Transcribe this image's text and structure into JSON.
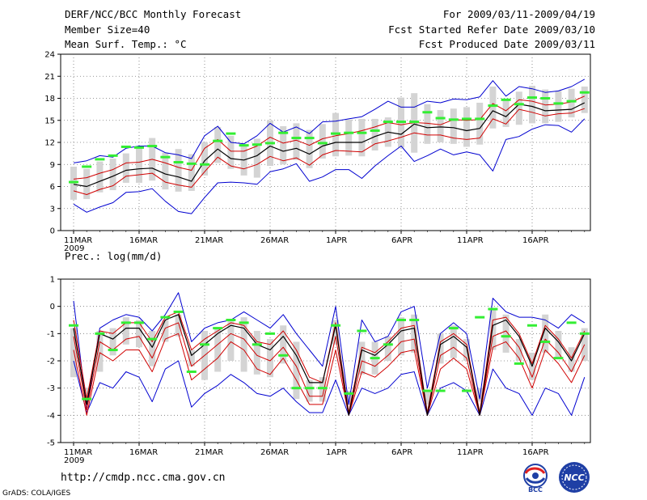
{
  "header": {
    "title": "DERF/NCC/BCC Monthly Forecast",
    "member_size": "Member Size=40",
    "variable": "Mean Surf. Temp.: °C",
    "period": "For 2009/03/11-2009/04/19",
    "started": "Fcst Started Refer Date 2009/03/10",
    "produced": "Fcst Produced Date 2009/03/11"
  },
  "footer": {
    "url": "http://cmdp.ncc.cma.gov.cn",
    "grads": "GrADS: COLA/IGES",
    "logo_bcc": "BCC",
    "logo_ncc": "NCC"
  },
  "colors": {
    "box": "#d4d4d4",
    "mean": "#000000",
    "spread": "#d00000",
    "extreme": "#0000d0",
    "marker": "#33ee33",
    "grid": "#777777"
  },
  "chart_data": [
    {
      "type": "line",
      "title": "Mean Surf. Temp.: °C",
      "x_tick_labels": [
        "11MAR\n2009",
        "16MAR",
        "21MAR",
        "26MAR",
        "1APR",
        "6APR",
        "11APR",
        "16APR"
      ],
      "x_tick_day_index": [
        0,
        5,
        10,
        15,
        20,
        25,
        30,
        35
      ],
      "ylim": [
        0,
        24
      ],
      "yticks": [
        0,
        3,
        6,
        9,
        12,
        15,
        18,
        21,
        24
      ],
      "grid": true,
      "series": [
        {
          "name": "max",
          "values": [
            9.2,
            9.5,
            10.2,
            10.0,
            11.2,
            11.5,
            11.5,
            10.6,
            10.3,
            9.8,
            12.9,
            14.2,
            12.0,
            11.8,
            12.9,
            14.6,
            13.4,
            14.1,
            13.2,
            14.8,
            14.9,
            15.2,
            15.5,
            16.5,
            17.6,
            16.8,
            16.8,
            17.6,
            17.4,
            17.9,
            17.8,
            18.2,
            20.4,
            18.3,
            19.6,
            19.3,
            18.8,
            19.0,
            19.6,
            20.6
          ]
        },
        {
          "name": "p90",
          "values": [
            7.0,
            7.2,
            7.8,
            8.3,
            9.2,
            9.3,
            9.7,
            9.2,
            8.6,
            8.2,
            11.2,
            12.4,
            10.8,
            10.8,
            11.5,
            12.7,
            11.9,
            12.3,
            11.6,
            12.5,
            12.9,
            13.2,
            13.6,
            14.1,
            14.7,
            14.4,
            14.7,
            14.6,
            14.4,
            15.1,
            15.0,
            15.1,
            17.3,
            16.3,
            17.8,
            17.6,
            17.1,
            17.2,
            17.5,
            18.3
          ]
        },
        {
          "name": "mean",
          "values": [
            6.3,
            6.0,
            6.7,
            7.4,
            8.2,
            8.4,
            8.5,
            7.7,
            7.3,
            6.7,
            9.5,
            11.1,
            9.8,
            9.6,
            10.2,
            11.5,
            10.8,
            11.2,
            10.4,
            11.5,
            12.0,
            12.0,
            12.0,
            12.8,
            13.4,
            13.1,
            14.5,
            14.0,
            14.1,
            14.0,
            13.6,
            13.9,
            16.3,
            15.5,
            17.2,
            16.9,
            16.3,
            16.4,
            16.5,
            17.4
          ]
        },
        {
          "name": "p10",
          "values": [
            5.4,
            4.9,
            5.6,
            6.1,
            7.4,
            7.6,
            7.8,
            6.6,
            6.2,
            5.9,
            8.0,
            10.0,
            8.8,
            8.4,
            9.0,
            10.1,
            9.5,
            9.9,
            8.9,
            10.3,
            10.9,
            10.8,
            10.7,
            11.8,
            12.2,
            12.7,
            13.3,
            13.0,
            13.0,
            12.6,
            12.4,
            12.6,
            15.2,
            14.5,
            16.5,
            16.1,
            15.6,
            15.9,
            16.0,
            16.6
          ]
        },
        {
          "name": "min",
          "values": [
            3.6,
            2.5,
            3.2,
            3.8,
            5.2,
            5.3,
            5.7,
            4.0,
            2.6,
            2.3,
            4.5,
            6.5,
            6.6,
            6.5,
            6.3,
            8.0,
            8.4,
            9.1,
            6.7,
            7.3,
            8.3,
            8.3,
            7.1,
            8.8,
            10.2,
            11.5,
            9.4,
            10.2,
            11.1,
            10.3,
            10.7,
            10.3,
            8.1,
            12.4,
            12.8,
            13.8,
            14.4,
            14.3,
            13.4,
            15.2
          ]
        },
        {
          "name": "marker",
          "values": [
            6.6,
            8.7,
            9.7,
            10.2,
            11.4,
            11.3,
            11.5,
            10.0,
            9.3,
            9.1,
            9.0,
            12.2,
            13.2,
            11.6,
            11.7,
            11.9,
            13.3,
            12.6,
            12.6,
            11.9,
            13.2,
            13.3,
            13.3,
            13.6,
            14.8,
            14.8,
            14.8,
            16.1,
            15.3,
            15.1,
            15.2,
            15.2,
            17.0,
            17.8,
            17.2,
            18.1,
            18.0,
            17.3,
            17.6,
            18.8
          ]
        },
        {
          "name": "box_low",
          "values": [
            4.2,
            4.3,
            5.2,
            5.5,
            6.5,
            6.5,
            6.8,
            5.6,
            5.3,
            5.4,
            7.5,
            9.2,
            8.4,
            7.5,
            7.2,
            8.8,
            9.0,
            9.6,
            8.5,
            9.8,
            10.1,
            10.2,
            10.1,
            10.9,
            11.4,
            11.3,
            10.6,
            11.8,
            12.0,
            11.8,
            11.4,
            11.7,
            13.9,
            14.1,
            14.4,
            14.6,
            14.6,
            14.8,
            15.4,
            16.0
          ]
        },
        {
          "name": "box_high",
          "values": [
            8.7,
            8.4,
            9.4,
            9.8,
            10.5,
            11.4,
            12.6,
            10.6,
            11.1,
            10.4,
            12.0,
            14.1,
            12.9,
            11.7,
            12.5,
            15.0,
            14.2,
            14.6,
            13.7,
            14.5,
            16.0,
            15.1,
            15.2,
            15.2,
            15.4,
            18.1,
            18.7,
            17.2,
            16.4,
            16.6,
            16.8,
            17.4,
            19.6,
            17.8,
            18.9,
            19.7,
            19.2,
            19.0,
            19.3,
            19.6
          ]
        }
      ]
    },
    {
      "type": "line",
      "title": "Prec.: log(mm/d)",
      "x_tick_labels": [
        "11MAR\n2009",
        "16MAR",
        "21MAR",
        "26MAR",
        "1APR",
        "6APR",
        "11APR",
        "16APR"
      ],
      "x_tick_day_index": [
        0,
        5,
        10,
        15,
        20,
        25,
        30,
        35
      ],
      "ylim": [
        -5,
        1
      ],
      "yticks": [
        -5,
        -4,
        -3,
        -2,
        -1,
        0,
        1
      ],
      "grid": true,
      "series": [
        {
          "name": "max",
          "values": [
            0.2,
            -3.8,
            -0.8,
            -0.5,
            -0.3,
            -0.4,
            -0.9,
            -0.3,
            0.5,
            -1.3,
            -0.8,
            -0.6,
            -0.5,
            -0.2,
            -0.5,
            -0.8,
            -0.3,
            -1.0,
            -1.6,
            -2.2,
            0.0,
            -3.6,
            -0.5,
            -1.3,
            -1.1,
            -0.2,
            0.0,
            -3.0,
            -1.0,
            -0.6,
            -1.0,
            -3.4,
            0.3,
            -0.2,
            -0.4,
            -0.4,
            -0.5,
            -0.8,
            -0.3,
            -0.6
          ]
        },
        {
          "name": "p90",
          "values": [
            -0.5,
            -3.4,
            -0.9,
            -1.0,
            -0.6,
            -0.6,
            -1.3,
            -0.4,
            -0.2,
            -1.6,
            -1.2,
            -0.9,
            -0.6,
            -0.7,
            -1.3,
            -1.4,
            -0.9,
            -1.6,
            -2.6,
            -2.8,
            -0.6,
            -3.9,
            -1.5,
            -1.7,
            -1.3,
            -0.8,
            -0.7,
            -3.9,
            -1.3,
            -1.0,
            -1.4,
            -3.9,
            -0.5,
            -0.4,
            -1.0,
            -2.1,
            -0.7,
            -1.2,
            -1.9,
            -0.9
          ]
        },
        {
          "name": "mean",
          "values": [
            -0.8,
            -3.6,
            -1.0,
            -1.2,
            -0.8,
            -0.8,
            -1.5,
            -0.5,
            -0.3,
            -1.8,
            -1.4,
            -1.0,
            -0.7,
            -0.8,
            -1.4,
            -1.6,
            -1.1,
            -1.8,
            -2.8,
            -2.8,
            -0.7,
            -4.0,
            -1.6,
            -1.8,
            -1.4,
            -0.9,
            -0.8,
            -4.0,
            -1.4,
            -1.1,
            -1.5,
            -4.0,
            -0.7,
            -0.5,
            -1.1,
            -2.2,
            -0.8,
            -1.3,
            -2.0,
            -1.0
          ]
        },
        {
          "name": "p10",
          "values": [
            -1.1,
            -3.8,
            -1.3,
            -1.6,
            -1.2,
            -1.1,
            -1.9,
            -0.8,
            -0.6,
            -2.2,
            -1.8,
            -1.4,
            -1.0,
            -1.2,
            -1.8,
            -2.0,
            -1.5,
            -2.2,
            -3.3,
            -3.3,
            -1.1,
            -4.0,
            -2.0,
            -2.2,
            -1.8,
            -1.3,
            -1.2,
            -4.0,
            -1.8,
            -1.5,
            -1.9,
            -4.0,
            -1.1,
            -0.9,
            -1.5,
            -2.6,
            -1.2,
            -1.7,
            -2.4,
            -1.4
          ]
        },
        {
          "name": "p05",
          "values": [
            -1.6,
            -4.0,
            -1.7,
            -2.0,
            -1.6,
            -1.6,
            -2.4,
            -1.2,
            -1.0,
            -2.7,
            -2.3,
            -1.9,
            -1.3,
            -1.6,
            -2.3,
            -2.5,
            -1.9,
            -2.7,
            -3.6,
            -3.6,
            -1.6,
            -4.0,
            -2.4,
            -2.6,
            -2.2,
            -1.7,
            -1.6,
            -4.0,
            -2.3,
            -1.9,
            -2.3,
            -4.0,
            -1.5,
            -1.3,
            -1.9,
            -3.0,
            -1.6,
            -2.1,
            -2.8,
            -1.8
          ]
        },
        {
          "name": "min",
          "values": [
            -2.0,
            -3.9,
            -2.8,
            -3.0,
            -2.4,
            -2.6,
            -3.5,
            -2.3,
            -2.0,
            -3.7,
            -3.2,
            -2.9,
            -2.5,
            -2.8,
            -3.2,
            -3.3,
            -3.0,
            -3.5,
            -3.9,
            -3.9,
            -2.7,
            -4.0,
            -3.0,
            -3.2,
            -3.0,
            -2.5,
            -2.4,
            -4.0,
            -3.0,
            -2.8,
            -3.1,
            -4.0,
            -2.3,
            -3.0,
            -3.2,
            -4.0,
            -3.0,
            -3.2,
            -4.0,
            -2.6
          ]
        },
        {
          "name": "marker",
          "values": [
            -0.7,
            -3.4,
            -1.0,
            -1.6,
            -0.6,
            -0.6,
            -1.2,
            -0.4,
            -0.2,
            -2.4,
            -1.4,
            -0.8,
            -0.5,
            -0.6,
            -1.4,
            -1.0,
            -1.8,
            -3.0,
            -3.0,
            -3.0,
            -0.7,
            -3.2,
            -0.9,
            -1.9,
            -1.4,
            -0.5,
            -0.5,
            -3.1,
            -3.1,
            -0.8,
            -3.1,
            -0.4,
            -0.1,
            -1.1,
            -2.1,
            -0.7,
            -1.3,
            -1.9,
            -0.6,
            -1.0
          ]
        },
        {
          "name": "box_low",
          "values": [
            -2.6,
            -3.3,
            -2.4,
            -1.8,
            -1.4,
            -1.5,
            -2.2,
            -1.3,
            -1.1,
            -2.2,
            -2.7,
            -2.4,
            -2.0,
            -2.4,
            -2.5,
            -2.6,
            -2.1,
            -3.4,
            -3.5,
            -3.5,
            -1.4,
            -3.6,
            -2.5,
            -2.5,
            -2.0,
            -1.8,
            -1.7,
            -3.6,
            -2.1,
            -1.9,
            -2.0,
            -3.5,
            -1.6,
            -1.7,
            -2.0,
            -2.7,
            -1.7,
            -1.9,
            -2.4,
            -2.0
          ]
        },
        {
          "name": "box_high",
          "values": [
            -0.8,
            -3.0,
            -0.9,
            -0.8,
            -0.4,
            -0.5,
            -0.9,
            -0.5,
            -0.3,
            -1.6,
            -0.9,
            -0.8,
            -0.5,
            -0.4,
            -0.9,
            -1.2,
            -0.7,
            -1.3,
            -2.7,
            -2.6,
            -0.5,
            -3.1,
            -1.3,
            -1.3,
            -1.1,
            -0.4,
            -0.3,
            -3.1,
            -1.0,
            -0.7,
            -1.2,
            -3.0,
            -0.1,
            -0.3,
            -1.2,
            -1.7,
            -0.3,
            -0.9,
            -1.5,
            -0.8
          ]
        }
      ]
    }
  ]
}
